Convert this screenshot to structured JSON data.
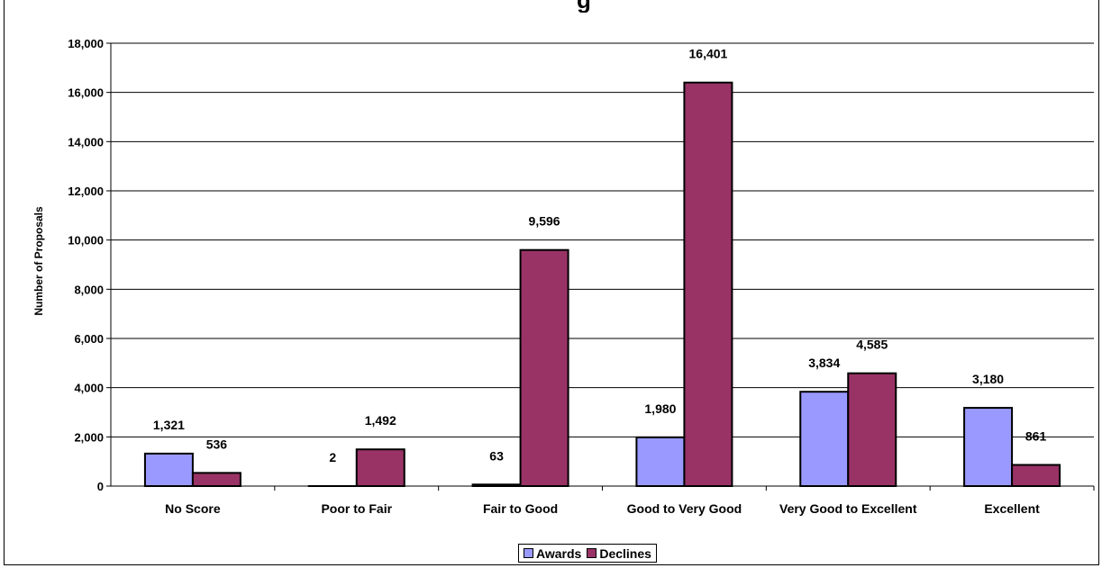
{
  "chart_data": {
    "type": "bar",
    "categories": [
      "No Score",
      "Poor to Fair",
      "Fair to Good",
      "Good to Very Good",
      "Very Good to Excellent",
      "Excellent"
    ],
    "series": [
      {
        "name": "Awards",
        "values": [
          1321,
          2,
          63,
          1980,
          3834,
          3180
        ],
        "labels": [
          "1,321",
          "2",
          "63",
          "1,980",
          "3,834",
          "3,180"
        ],
        "color": "#9999ff"
      },
      {
        "name": "Declines",
        "values": [
          536,
          1492,
          9596,
          16401,
          4585,
          861
        ],
        "labels": [
          "536",
          "1,492",
          "9,596",
          "16,401",
          "4,585",
          "861"
        ],
        "color": "#993366"
      }
    ],
    "ylabel": "Number of Proposals",
    "xlabel": "",
    "ylim": [
      0,
      18000
    ],
    "yticks": [
      0,
      2000,
      4000,
      6000,
      8000,
      10000,
      12000,
      14000,
      16000,
      18000
    ],
    "ytick_labels": [
      "0",
      "2,000",
      "4,000",
      "6,000",
      "8,000",
      "10,000",
      "12,000",
      "14,000",
      "16,000",
      "18,000"
    ],
    "grid": true,
    "legend_position": "bottom-center",
    "title_fragment": "g"
  }
}
